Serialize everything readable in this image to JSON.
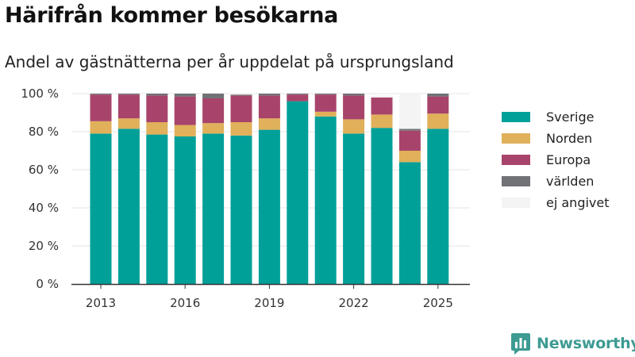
{
  "title": "Härifrån kommer besökarna",
  "subtitle": "Andel av gästnätterna per år uppdelat på ursprungsland",
  "brand": {
    "name": "Newsworthy",
    "color": "#3d9b93"
  },
  "chart_data": {
    "type": "bar",
    "stacked": true,
    "categories": [
      2013,
      2014,
      2015,
      2016,
      2017,
      2018,
      2019,
      2020,
      2021,
      2022,
      2023,
      2024,
      2025
    ],
    "x_tick_labels": [
      "2013",
      "2016",
      "2019",
      "2022",
      "2025"
    ],
    "y_tick_labels": [
      "0 %",
      "20 %",
      "40 %",
      "60 %",
      "80 %",
      "100 %"
    ],
    "ylim": [
      0,
      100
    ],
    "grid": true,
    "legend_position": "right",
    "series": [
      {
        "name": "Sverige",
        "color": "#00a099",
        "values": [
          79,
          81.5,
          78.5,
          77.5,
          79,
          78,
          81,
          96,
          88,
          79,
          82,
          64,
          81.5
        ]
      },
      {
        "name": "Norden",
        "color": "#e0b05a",
        "values": [
          6.5,
          5.5,
          6.5,
          6,
          5.5,
          7,
          6,
          0,
          2.5,
          7.5,
          7,
          6,
          8
        ]
      },
      {
        "name": "Europa",
        "color": "#a8446b",
        "values": [
          14,
          12.5,
          14,
          15,
          13,
          14,
          12,
          3.5,
          9,
          12.5,
          9,
          10.5,
          9
        ]
      },
      {
        "name": "världen",
        "color": "#707276",
        "values": [
          0.5,
          0.5,
          1,
          1.5,
          2.5,
          0.5,
          1,
          0.5,
          0.5,
          1,
          0,
          1,
          1.5
        ]
      },
      {
        "name": "ej angivet",
        "color": "#f4f4f4",
        "values": [
          0,
          0,
          0,
          0,
          0,
          0.5,
          0,
          0,
          0,
          0,
          1,
          18.5,
          0
        ]
      }
    ]
  }
}
